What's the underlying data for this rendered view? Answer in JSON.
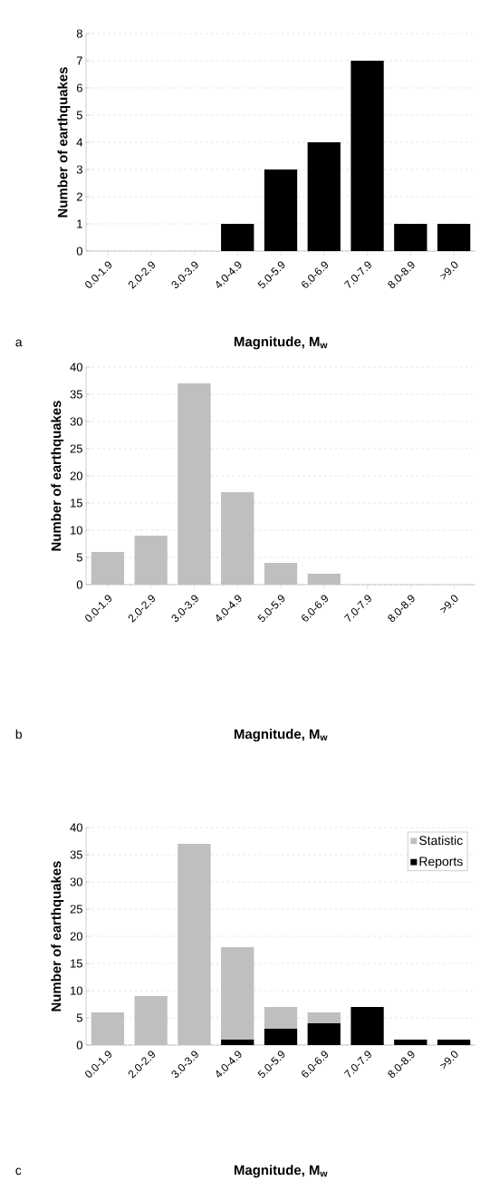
{
  "chart_data": [
    {
      "type": "bar",
      "xlabel": "Magnitude, M$_{w}$",
      "ylabel": "Number of earthquakes",
      "annotations": [
        "a"
      ],
      "categories": [
        "0.0-1.9",
        "2.0-2.9",
        "3.0-3.9",
        "4.0-4.9",
        "5.0-5.9",
        "6.0-6.9",
        "7.0-7.9",
        "8.0-8.9",
        ">9.0"
      ],
      "series": [
        {
          "color": "#000000",
          "values": [
            0,
            0,
            0,
            1,
            3,
            4,
            7,
            1,
            1
          ]
        }
      ],
      "ylim": [
        0,
        8
      ],
      "yticks": [
        0,
        1,
        2,
        3,
        4,
        5,
        6,
        7,
        8
      ],
      "grid": "y",
      "legend": false
    },
    {
      "type": "bar",
      "xlabel": "Magnitude, M$_{w}$",
      "ylabel": "Number of earthquakes",
      "annotations": [
        "b"
      ],
      "categories": [
        "0.0-1.9",
        "2.0-2.9",
        "3.0-3.9",
        "4.0-4.9",
        "5.0-5.9",
        "6.0-6.9",
        "7.0-7.9",
        "8.0-8.9",
        ">9.0"
      ],
      "series": [
        {
          "color": "#bfbfbf",
          "values": [
            6,
            9,
            37,
            17,
            4,
            2,
            0,
            0,
            0
          ]
        }
      ],
      "ylim": [
        0,
        40
      ],
      "yticks": [
        0,
        5,
        10,
        15,
        20,
        25,
        30,
        35,
        40
      ],
      "grid": "y",
      "legend": false
    },
    {
      "type": "bar",
      "xlabel": "Magnitude, M$_{w}$",
      "ylabel": "Number of earthquakes",
      "annotations": [
        "c"
      ],
      "categories": [
        "0.0-1.9",
        "2.0-2.9",
        "3.0-3.9",
        "4.0-4.9",
        "5.0-5.9",
        "6.0-6.9",
        "7.0-7.9",
        "8.0-8.9",
        ">9.0"
      ],
      "stacked": true,
      "series": [
        {
          "name": "Reports",
          "color": "#000000",
          "values": [
            0,
            0,
            0,
            1,
            3,
            4,
            7,
            1,
            1
          ]
        },
        {
          "name": "Statistic",
          "color": "#bfbfbf",
          "values": [
            6,
            9,
            37,
            17,
            4,
            2,
            0,
            0,
            0
          ]
        }
      ],
      "ylim": [
        0,
        40
      ],
      "yticks": [
        0,
        5,
        10,
        15,
        20,
        25,
        30,
        35,
        40
      ],
      "grid": "y",
      "legend": "top right"
    }
  ]
}
